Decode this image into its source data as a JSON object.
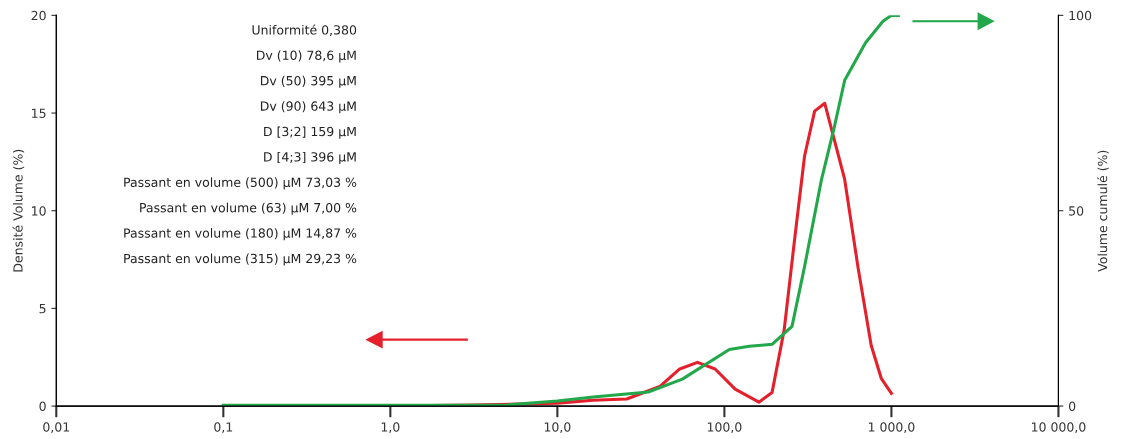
{
  "chart_data": {
    "type": "line",
    "ylabel": "Densité Volume (%)",
    "y2label": "Volume cumulé (%)",
    "log": "x",
    "marker": "none",
    "line_style": "solid",
    "xlim": [
      0.01,
      10000
    ],
    "xticks": [
      {
        "value": 0.01,
        "label": "0,01"
      },
      {
        "value": 0.1,
        "label": "0,1"
      },
      {
        "value": 1,
        "label": "1,0"
      },
      {
        "value": 10,
        "label": "10,0"
      },
      {
        "value": 100,
        "label": "100,0"
      },
      {
        "value": 1000,
        "label": "1 000,0"
      },
      {
        "value": 10000,
        "label": "10 000,0"
      }
    ],
    "ylim": [
      0,
      20
    ],
    "yticks": [
      0,
      5,
      10,
      15,
      20
    ],
    "y2lim": [
      0,
      100
    ],
    "y2ticks": [
      0,
      50,
      100
    ],
    "series": [
      {
        "color": "#e3202c",
        "x": [
          0.1,
          1,
          3,
          10,
          16.4,
          26,
          41,
          54,
          69,
          88,
          116,
          161,
          193,
          228,
          263,
          302,
          347,
          399,
          525,
          631,
          757,
          871,
          1000
        ],
        "values": [
          0.0,
          0.0,
          0.05,
          0.15,
          0.3,
          0.36,
          1.0,
          1.9,
          2.24,
          1.9,
          0.87,
          0.2,
          0.7,
          3.9,
          8.5,
          12.8,
          15.1,
          15.5,
          11.6,
          7.1,
          3.1,
          1.4,
          0.65
        ]
      },
      {
        "color": "#22a84a",
        "axis": "y2",
        "x": [
          0.1,
          1,
          5,
          10,
          16.4,
          35,
          56,
          107,
          141,
          193,
          254,
          302,
          381,
          455,
          525,
          700,
          890,
          1000,
          1100
        ],
        "values": [
          0.2,
          0.2,
          0.3,
          1.3,
          2.3,
          3.6,
          6.9,
          14.5,
          15.3,
          15.8,
          20.4,
          35.7,
          57.9,
          71.4,
          83.4,
          93,
          98.5,
          100,
          100
        ]
      }
    ],
    "annotations": [
      "Uniformité 0,380",
      "Dv (10) 78,6 µM",
      "Dv (50) 395 µM",
      "Dv (90) 643 µM",
      "D [3;2] 159 µM",
      "D [4;3] 396 µM",
      "Passant en volume (500) µM 73,03 %",
      "Passant en volume (63) µM 7,00 %",
      "Passant en volume (180) µM 14,87 %",
      "Passant en volume (315) µM 29,23 %"
    ]
  }
}
